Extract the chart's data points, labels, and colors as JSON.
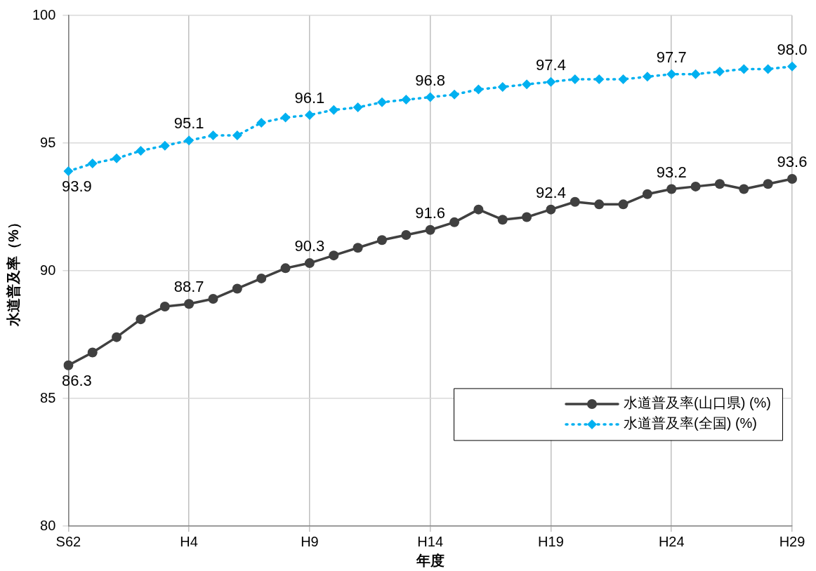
{
  "chart_data": {
    "type": "line",
    "xlabel": "年度",
    "ylabel": "水道普及率（%）",
    "categories": [
      "S62",
      null,
      null,
      null,
      null,
      "H4",
      null,
      null,
      null,
      null,
      "H9",
      null,
      null,
      null,
      null,
      "H14",
      null,
      null,
      null,
      null,
      "H19",
      null,
      null,
      null,
      null,
      "H24",
      null,
      null,
      null,
      null,
      "H29"
    ],
    "ylim": [
      80,
      100
    ],
    "yticks": [
      80,
      85,
      90,
      95,
      100
    ],
    "grid": true,
    "legend": "bottom right",
    "series": [
      {
        "name": "水道普及率(山口県) (%)",
        "color": "#404040",
        "marker": "circle",
        "line_style": "solid",
        "values": [
          86.3,
          86.8,
          87.4,
          88.1,
          88.6,
          88.7,
          88.9,
          89.3,
          89.7,
          90.1,
          90.3,
          90.6,
          90.9,
          91.2,
          91.4,
          91.6,
          91.9,
          92.4,
          92.0,
          92.1,
          92.4,
          92.7,
          92.6,
          92.6,
          93.0,
          93.2,
          93.3,
          93.4,
          93.2,
          93.4,
          93.6
        ],
        "value_labels": [
          "86.3",
          null,
          null,
          null,
          null,
          "88.7",
          null,
          null,
          null,
          null,
          "90.3",
          null,
          null,
          null,
          null,
          "91.6",
          null,
          null,
          null,
          null,
          "92.4",
          null,
          null,
          null,
          null,
          "93.2",
          null,
          null,
          null,
          null,
          "93.6"
        ]
      },
      {
        "name": "水道普及率(全国) (%)",
        "color": "#00b0f0",
        "marker": "diamond",
        "line_style": "dotted",
        "values": [
          93.9,
          94.2,
          94.4,
          94.7,
          94.9,
          95.1,
          95.3,
          95.3,
          95.8,
          96.0,
          96.1,
          96.3,
          96.4,
          96.6,
          96.7,
          96.8,
          96.9,
          97.1,
          97.2,
          97.3,
          97.4,
          97.5,
          97.5,
          97.5,
          97.6,
          97.7,
          97.7,
          97.8,
          97.9,
          97.9,
          98.0
        ],
        "value_labels": [
          "93.9",
          null,
          null,
          null,
          null,
          "95.1",
          null,
          null,
          null,
          null,
          "96.1",
          null,
          null,
          null,
          null,
          "96.8",
          null,
          null,
          null,
          null,
          "97.4",
          null,
          null,
          null,
          null,
          "97.7",
          null,
          null,
          null,
          null,
          "98.0"
        ]
      }
    ]
  }
}
